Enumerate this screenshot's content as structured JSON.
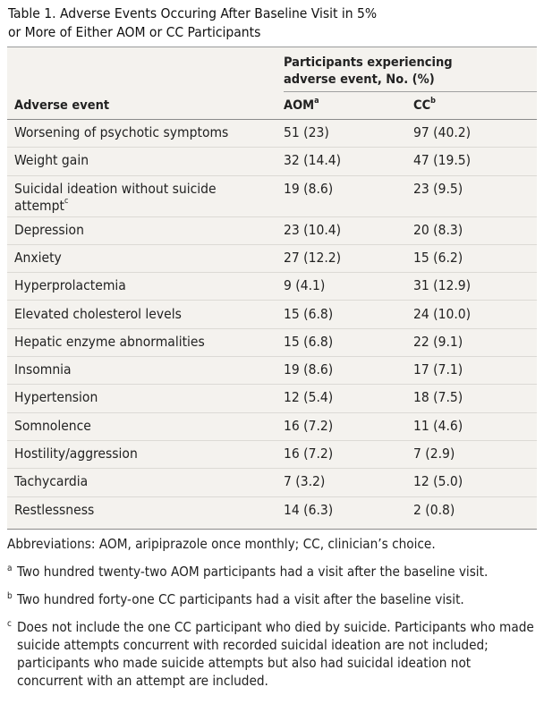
{
  "title": {
    "line1": "Table 1. Adverse Events Occuring After Baseline Visit in 5%",
    "line2": "or More of Either AOM or CC Participants"
  },
  "header": {
    "group_line1": "Participants experiencing",
    "group_line2": "adverse event, No. (%)",
    "col_event": "Adverse event",
    "col_aom": "AOM",
    "col_aom_sup": "a",
    "col_cc": "CC",
    "col_cc_sup": "b"
  },
  "rows": [
    {
      "event": "Worsening of psychotic symptoms",
      "aom": "51 (23)",
      "cc": "97 (40.2)"
    },
    {
      "event": "Weight gain",
      "aom": "32 (14.4)",
      "cc": "47 (19.5)"
    },
    {
      "event_line1": "Suicidal ideation without suicide",
      "event_line2": "attempt",
      "event_sup": "c",
      "aom": "19 (8.6)",
      "cc": "23 (9.5)"
    },
    {
      "event": "Depression",
      "aom": "23 (10.4)",
      "cc": "20 (8.3)"
    },
    {
      "event": "Anxiety",
      "aom": "27 (12.2)",
      "cc": "15 (6.2)"
    },
    {
      "event": "Hyperprolactemia",
      "aom": "9 (4.1)",
      "cc": "31 (12.9)"
    },
    {
      "event": "Elevated cholesterol levels",
      "aom": "15 (6.8)",
      "cc": "24 (10.0)"
    },
    {
      "event": "Hepatic enzyme abnormalities",
      "aom": "15 (6.8)",
      "cc": "22 (9.1)"
    },
    {
      "event": "Insomnia",
      "aom": "19 (8.6)",
      "cc": "17 (7.1)"
    },
    {
      "event": "Hypertension",
      "aom": "12 (5.4)",
      "cc": "18 (7.5)"
    },
    {
      "event": "Somnolence",
      "aom": "16 (7.2)",
      "cc": "11 (4.6)"
    },
    {
      "event": "Hostility/aggression",
      "aom": "16 (7.2)",
      "cc": "7 (2.9)"
    },
    {
      "event": "Tachycardia",
      "aom": "7 (3.2)",
      "cc": "12 (5.0)"
    },
    {
      "event": "Restlessness",
      "aom": "14 (6.3)",
      "cc": "2 (0.8)"
    }
  ],
  "footnotes": {
    "abbreviations": "Abbreviations: AOM, aripiprazole once monthly; CC, clinician’s choice.",
    "a_mark": "a",
    "a_text": "Two hundred twenty-two AOM participants had a visit after the baseline visit.",
    "b_mark": "b",
    "b_text": "Two hundred forty-one CC participants had a visit after the baseline visit.",
    "c_mark": "c",
    "c_text": "Does not include the one CC participant who died by suicide. Participants who made suicide attempts concurrent with recorded suicidal ideation are not included; participants who made suicide attempts but also had suicidal ideation not concurrent with an attempt are included."
  },
  "colors": {
    "table_background": "#f4f2ee",
    "row_separator": "#dcdad5",
    "rule": "#8a8a8a"
  }
}
